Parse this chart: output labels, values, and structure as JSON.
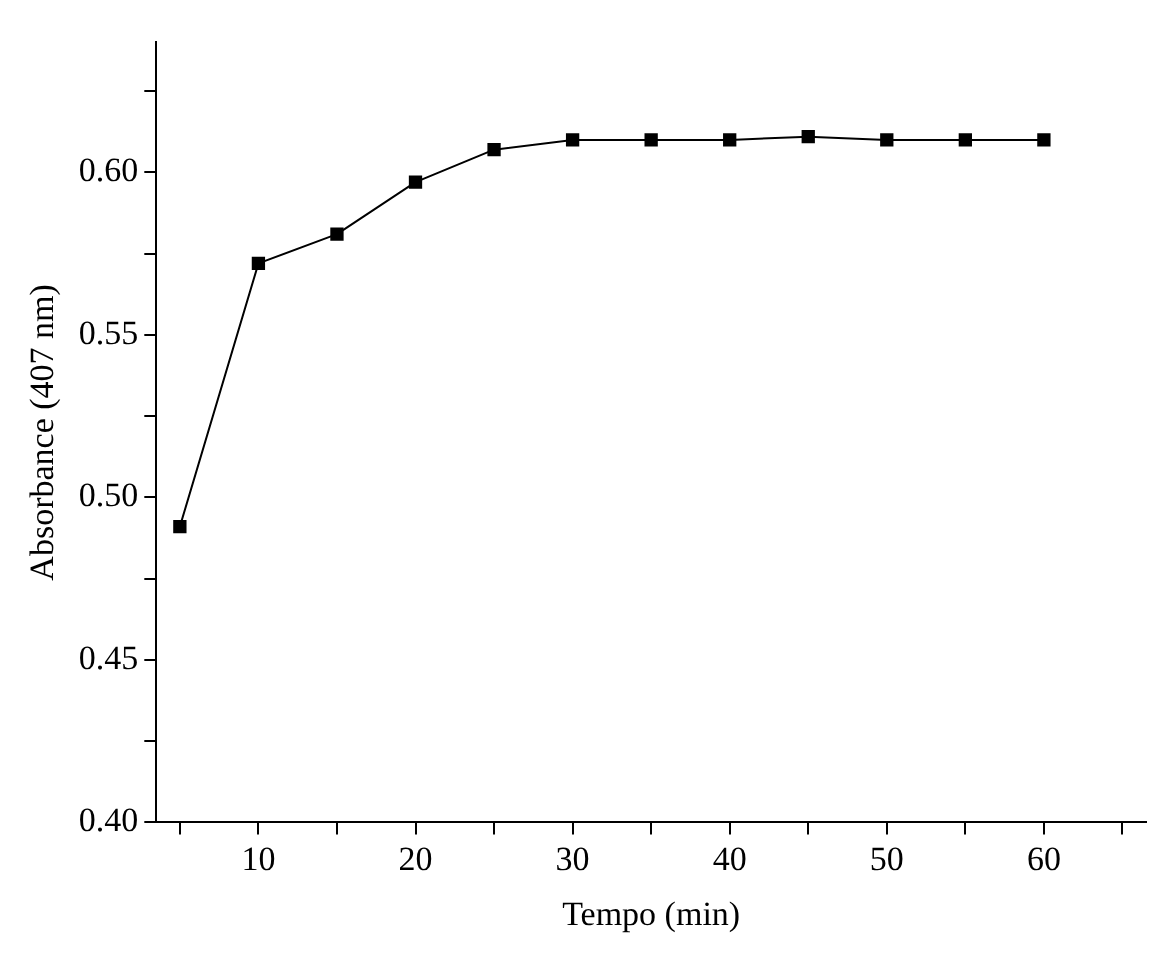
{
  "chart_data": {
    "type": "line",
    "xlabel": "Tempo (min)",
    "ylabel": "Absorbance (407 nm)",
    "x": [
      5,
      10,
      15,
      20,
      25,
      30,
      35,
      40,
      45,
      50,
      55,
      60
    ],
    "series": [
      {
        "color": "#000000",
        "values": [
          0.491,
          0.572,
          0.581,
          0.597,
          0.607,
          0.61,
          0.61,
          0.61,
          0.611,
          0.61,
          0.61,
          0.61
        ]
      }
    ],
    "xlim": [
      3.5,
      66.5
    ],
    "xticks": [
      {
        "value": 5,
        "label": null
      },
      10,
      {
        "value": 15,
        "label": null
      },
      20,
      {
        "value": 25,
        "label": null
      },
      30,
      {
        "value": 35,
        "label": null
      },
      40,
      {
        "value": 45,
        "label": null
      },
      50,
      {
        "value": 55,
        "label": null
      },
      60,
      {
        "value": 65,
        "label": null
      }
    ],
    "ylim": [
      0.4,
      0.64
    ],
    "yticks": [
      {
        "value": 0.4,
        "label": "0.40"
      },
      {
        "value": 0.425,
        "label": null
      },
      {
        "value": 0.45,
        "label": "0.45"
      },
      {
        "value": 0.475,
        "label": null
      },
      {
        "value": 0.5,
        "label": "0.50"
      },
      {
        "value": 0.525,
        "label": null
      },
      {
        "value": 0.55,
        "label": "0.55"
      },
      {
        "value": 0.575,
        "label": null
      },
      {
        "value": 0.6,
        "label": "0.60"
      },
      {
        "value": 0.625,
        "label": null
      }
    ],
    "marker": "square",
    "line_style": "solid",
    "grid": false,
    "legend": false
  }
}
